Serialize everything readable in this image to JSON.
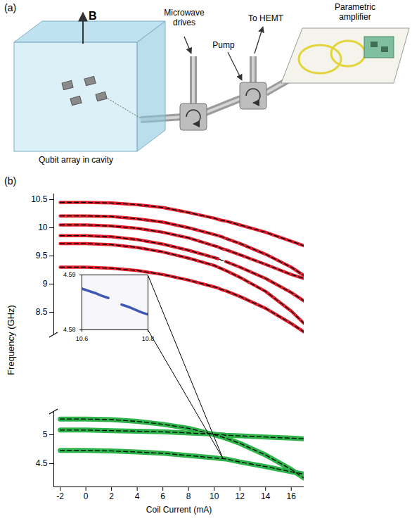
{
  "diagram": {
    "panel_label": "(a)",
    "field": "B",
    "labels": {
      "drives": "Microwave drives",
      "pump": "Pump",
      "hemt": "To HEMT",
      "amplifier": "Parametric amplifier",
      "cavity": "Qubit array in cavity"
    }
  },
  "chart_data": [
    {
      "type": "line",
      "panel_label": "(b)",
      "ylabel": "Frequency (GHz)",
      "tick_labels": "y",
      "x": [
        -2,
        0,
        2,
        4,
        6,
        8,
        10,
        10.3,
        10.6,
        10.9,
        12,
        14,
        16,
        17
      ],
      "xlim": [
        -2.5,
        17
      ],
      "ylim": [
        8.1,
        10.6
      ],
      "yticks": [
        8.5,
        9,
        9.5,
        10,
        10.5
      ],
      "series": [
        {
          "color": "#e4202b",
          "line_style": "solid",
          "values": [
            10.45,
            10.45,
            10.44,
            10.41,
            10.36,
            10.27,
            10.17,
            10.15,
            10.13,
            10.12,
            10.05,
            9.92,
            9.76,
            9.68
          ]
        },
        {
          "color": "#000000",
          "line_style": "dashed",
          "values": [
            10.45,
            10.45,
            10.44,
            10.41,
            10.36,
            10.27,
            10.17,
            10.15,
            10.13,
            10.12,
            10.05,
            9.92,
            9.76,
            9.68
          ]
        },
        {
          "color": "#e4202b",
          "line_style": "solid",
          "values": [
            10.21,
            10.21,
            10.2,
            10.16,
            10.1,
            10,
            9.88,
            9.86,
            9.84,
            9.81,
            9.72,
            9.53,
            9.3,
            9.15
          ]
        },
        {
          "color": "#000000",
          "line_style": "dashed",
          "values": [
            10.21,
            10.21,
            10.2,
            10.16,
            10.1,
            10,
            9.88,
            9.86,
            9.84,
            9.81,
            9.72,
            9.53,
            9.3,
            9.15
          ]
        },
        {
          "color": "#e4202b",
          "line_style": "solid",
          "values": [
            10.05,
            10.05,
            10.03,
            9.99,
            9.92,
            9.82,
            9.68,
            9.66,
            9.63,
            9.61,
            9.52,
            9.35,
            9.17,
            9.1
          ]
        },
        {
          "color": "#000000",
          "line_style": "dashed",
          "values": [
            10.05,
            10.05,
            10.03,
            9.99,
            9.92,
            9.82,
            9.68,
            9.66,
            9.63,
            9.61,
            9.52,
            9.35,
            9.17,
            9.1
          ]
        },
        {
          "color": "#e4202b",
          "line_style": "solid",
          "values": [
            9.86,
            9.86,
            9.84,
            9.79,
            9.71,
            9.6,
            9.47,
            9.45,
            null,
            9.4,
            9.3,
            9.1,
            8.85,
            8.7
          ]
        },
        {
          "color": "#000000",
          "line_style": "dashed",
          "values": [
            9.86,
            9.86,
            9.84,
            9.79,
            9.71,
            9.6,
            9.47,
            9.45,
            9.42,
            9.4,
            9.3,
            9.1,
            8.85,
            8.7
          ]
        },
        {
          "color": "#e4202b",
          "line_style": "solid",
          "values": [
            9.72,
            9.72,
            9.7,
            9.65,
            9.57,
            9.46,
            9.33,
            9.3,
            9.27,
            9.24,
            9.12,
            8.87,
            8.52,
            8.3
          ]
        },
        {
          "color": "#000000",
          "line_style": "dashed",
          "values": [
            9.72,
            9.72,
            9.7,
            9.65,
            9.57,
            9.46,
            9.33,
            9.3,
            9.27,
            9.24,
            9.12,
            8.87,
            8.52,
            8.3
          ]
        },
        {
          "color": "#e4202b",
          "line_style": "solid",
          "values": [
            9.3,
            9.3,
            9.28,
            9.24,
            9.17,
            9.07,
            8.95,
            8.93,
            8.9,
            8.88,
            8.78,
            8.57,
            8.3,
            8.15
          ]
        },
        {
          "color": "#000000",
          "line_style": "dashed",
          "values": [
            9.3,
            9.3,
            9.28,
            9.24,
            9.17,
            9.07,
            8.95,
            8.93,
            8.9,
            8.88,
            8.78,
            8.57,
            8.3,
            8.15
          ]
        }
      ]
    },
    {
      "type": "line",
      "xlabel": "Coil Current (mA)",
      "x": [
        -2,
        0,
        2,
        4,
        6,
        8,
        10,
        10.3,
        10.6,
        10.9,
        12,
        14,
        16,
        17
      ],
      "xlim": [
        -2.5,
        17
      ],
      "ylim": [
        4.1,
        5.4
      ],
      "xticks": [
        -2,
        0,
        2,
        4,
        6,
        8,
        10,
        12,
        14,
        16
      ],
      "yticks": [
        4.5,
        5
      ],
      "series": [
        {
          "color": "#2db34a",
          "line_style": "solid",
          "values": [
            5.27,
            5.27,
            5.26,
            5.23,
            5.18,
            5.11,
            5,
            4.98,
            4.96,
            4.94,
            4.85,
            4.65,
            4.4,
            4.25
          ]
        },
        {
          "color": "#000000",
          "line_style": "dashed",
          "values": [
            5.27,
            5.27,
            5.26,
            5.23,
            5.18,
            5.11,
            5,
            4.98,
            4.96,
            4.94,
            4.85,
            4.65,
            4.4,
            4.25
          ]
        },
        {
          "color": "#2db34a",
          "line_style": "solid",
          "values": [
            5.08,
            5.08,
            5.07,
            5.06,
            5.05,
            5.03,
            5.01,
            5,
            5,
            4.99,
            4.98,
            4.96,
            4.94,
            4.93
          ]
        },
        {
          "color": "#000000",
          "line_style": "dashed",
          "values": [
            5.08,
            5.08,
            5.07,
            5.06,
            5.05,
            5.03,
            5.01,
            5,
            5,
            4.99,
            4.98,
            4.96,
            4.94,
            4.93
          ]
        },
        {
          "color": "#2db34a",
          "line_style": "solid",
          "values": [
            4.73,
            4.73,
            4.72,
            4.7,
            4.68,
            4.64,
            4.6,
            4.592,
            4.587,
            4.581,
            4.53,
            4.45,
            4.36,
            4.32
          ]
        },
        {
          "color": "#000000",
          "line_style": "dashed",
          "values": [
            4.73,
            4.73,
            4.72,
            4.7,
            4.68,
            4.64,
            4.6,
            4.592,
            4.587,
            4.581,
            4.53,
            4.45,
            4.36,
            4.32
          ]
        }
      ]
    },
    {
      "type": "line",
      "color": "#3f57b5",
      "line_style": "solid",
      "x": [
        10.6,
        10.62,
        10.64,
        10.66,
        10.68,
        10.7,
        10.72,
        10.74,
        10.76,
        10.78,
        10.8
      ],
      "values": [
        4.5875,
        4.5871,
        4.5867,
        4.5862,
        4.5858,
        null,
        4.5846,
        4.5842,
        4.5837,
        4.5832,
        4.5828
      ],
      "xlim": [
        10.6,
        10.8
      ],
      "ylim": [
        4.58,
        4.59
      ],
      "xticks": [
        10.6,
        10.8
      ],
      "yticks": [
        4.58,
        4.59
      ]
    }
  ]
}
